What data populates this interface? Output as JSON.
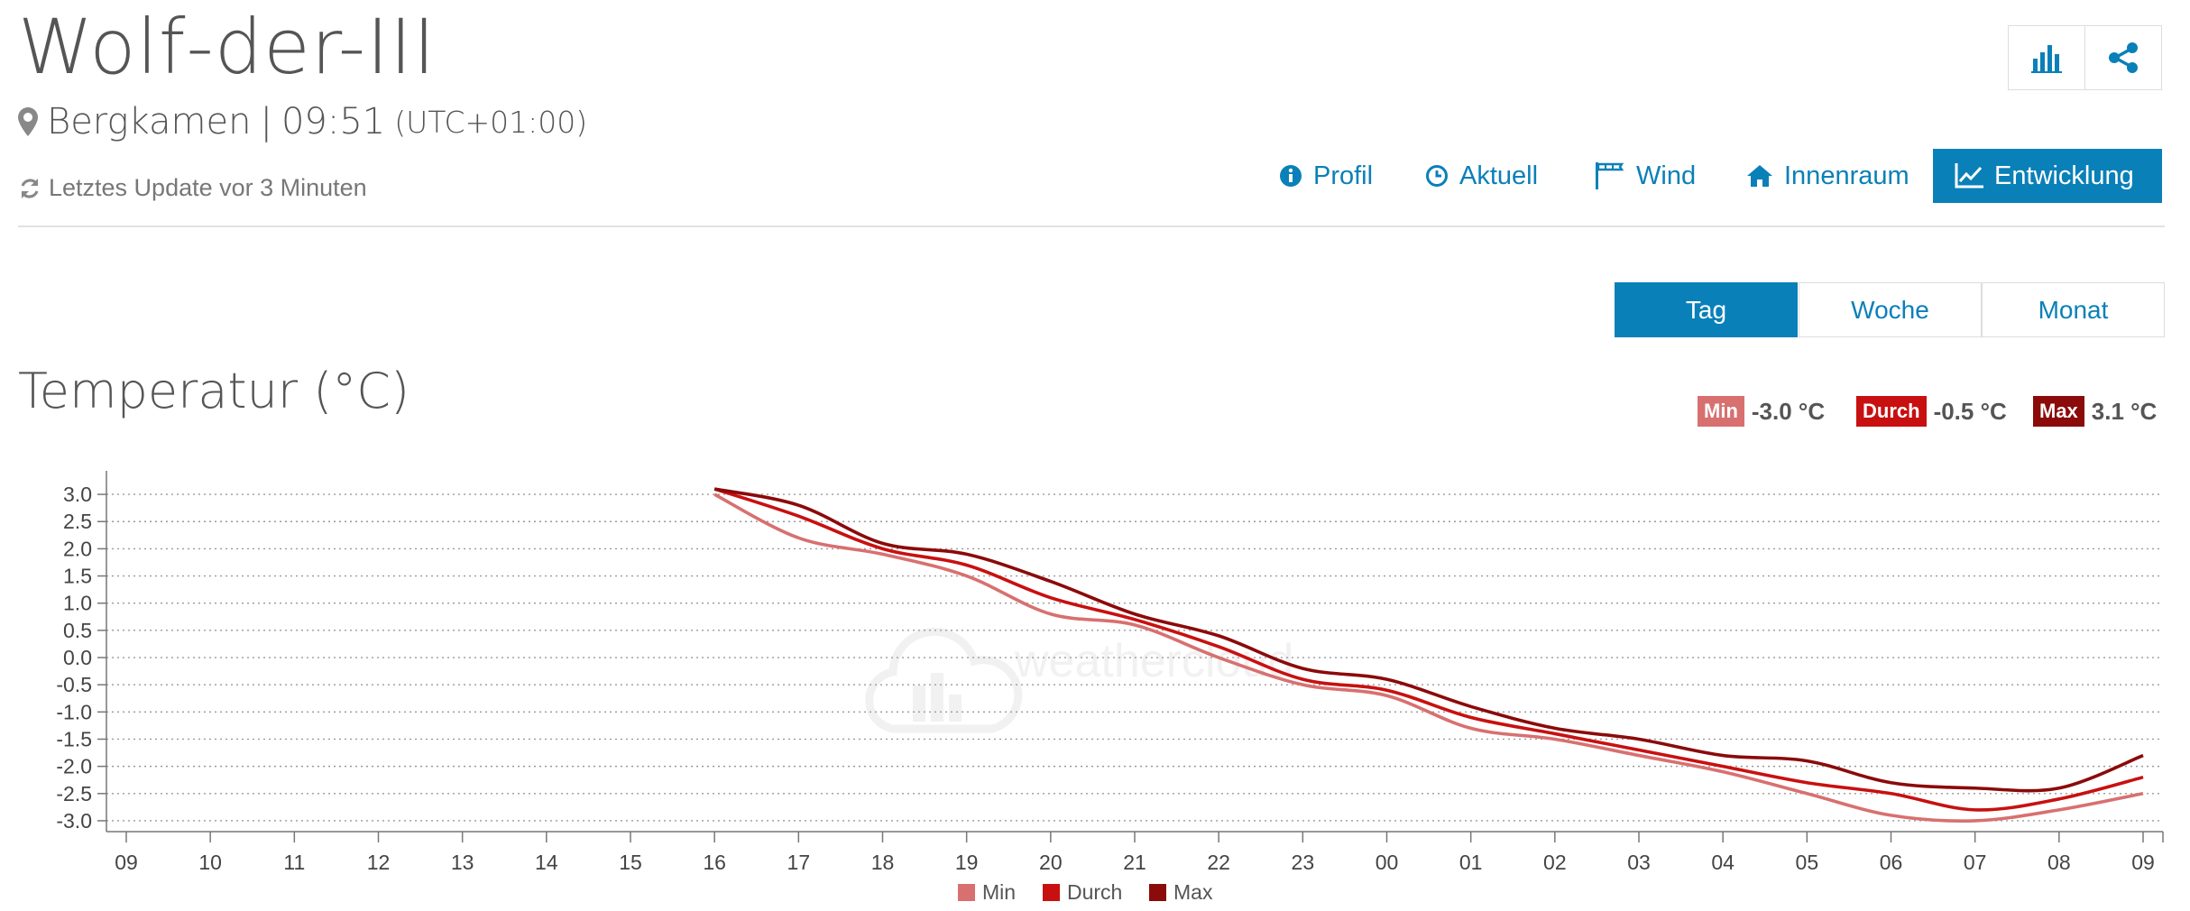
{
  "header": {
    "station_name": "Wolf-der-III",
    "location": "Bergkamen",
    "separator": "|",
    "local_time": "09:51",
    "timezone": "(UTC+01:00)",
    "last_update": "Letztes Update vor 3 Minuten"
  },
  "toolbar": {
    "chart_icon": "bar-chart-icon",
    "share_icon": "share-icon"
  },
  "nav": {
    "tabs": [
      {
        "label": "Profil",
        "icon": "info-circle-icon"
      },
      {
        "label": "Aktuell",
        "icon": "clock-icon"
      },
      {
        "label": "Wind",
        "icon": "windsock-icon"
      },
      {
        "label": "Innenraum",
        "icon": "home-icon"
      },
      {
        "label": "Entwicklung",
        "icon": "line-chart-icon",
        "active": true
      }
    ]
  },
  "range": {
    "options": [
      "Tag",
      "Woche",
      "Monat"
    ],
    "selected": "Tag"
  },
  "section": {
    "title": "Temperatur (°C)"
  },
  "stats": {
    "min": {
      "label": "Min",
      "value": "-3.0 °C",
      "color": "#d87070"
    },
    "avg": {
      "label": "Durch",
      "value": "-0.5 °C",
      "color": "#c81010"
    },
    "max": {
      "label": "Max",
      "value": "3.1 °C",
      "color": "#8b0a0a"
    }
  },
  "watermark": "weathercloud",
  "colors": {
    "accent": "#0a80b8",
    "min": "#d87070",
    "avg": "#c81010",
    "max": "#8b0a0a"
  },
  "chart_data": {
    "type": "line",
    "x": [
      "09",
      "10",
      "11",
      "12",
      "13",
      "14",
      "15",
      "16",
      "17",
      "18",
      "19",
      "20",
      "21",
      "22",
      "23",
      "00",
      "01",
      "02",
      "03",
      "04",
      "05",
      "06",
      "07",
      "08",
      "09"
    ],
    "ylim": [
      -3.2,
      3.3
    ],
    "yticks": [
      "3.0",
      "2.5",
      "2.0",
      "1.5",
      "1.0",
      "0.5",
      "0.0",
      "-0.5",
      "-1.0",
      "-1.5",
      "-2.0",
      "-2.5",
      "-3.0"
    ],
    "grid": true,
    "legend_position": "bottom",
    "series": [
      {
        "name": "Min",
        "color": "#d87070",
        "values": [
          null,
          null,
          null,
          null,
          null,
          null,
          null,
          3.0,
          2.2,
          1.9,
          1.5,
          0.8,
          0.6,
          0.0,
          -0.5,
          -0.7,
          -1.3,
          -1.5,
          -1.8,
          -2.1,
          -2.5,
          -2.9,
          -3.0,
          -2.8,
          -2.5
        ]
      },
      {
        "name": "Durch",
        "color": "#c81010",
        "values": [
          null,
          null,
          null,
          null,
          null,
          null,
          null,
          3.1,
          2.6,
          2.0,
          1.7,
          1.1,
          0.7,
          0.2,
          -0.4,
          -0.6,
          -1.1,
          -1.4,
          -1.7,
          -2.0,
          -2.3,
          -2.5,
          -2.8,
          -2.6,
          -2.2
        ]
      },
      {
        "name": "Max",
        "color": "#8b0a0a",
        "values": [
          null,
          null,
          null,
          null,
          null,
          null,
          null,
          3.1,
          2.8,
          2.1,
          1.9,
          1.4,
          0.8,
          0.4,
          -0.2,
          -0.4,
          -0.9,
          -1.3,
          -1.5,
          -1.8,
          -1.9,
          -2.3,
          -2.4,
          -2.4,
          -1.8
        ]
      }
    ]
  }
}
